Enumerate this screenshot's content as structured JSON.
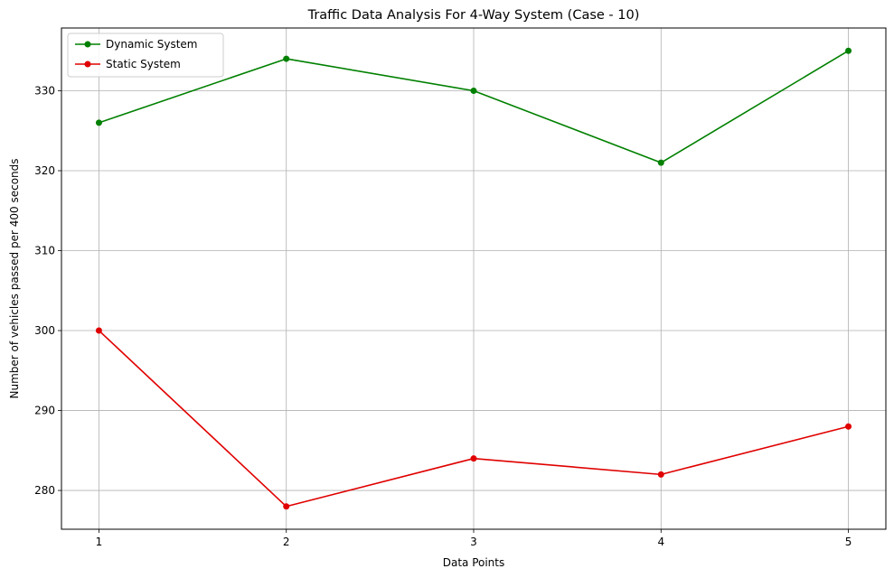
{
  "chart_data": {
    "type": "line",
    "title": "Traffic Data Analysis For 4-Way System (Case - 10)",
    "xlabel": "Data Points",
    "ylabel": "Number of vehicles passed per 400 seconds",
    "x": [
      1,
      2,
      3,
      4,
      5
    ],
    "x_ticks": [
      "1",
      "2",
      "3",
      "4",
      "5"
    ],
    "xlim": [
      0.8,
      5.2
    ],
    "y_ticks": [
      "280",
      "290",
      "300",
      "310",
      "320",
      "330"
    ],
    "y_tick_values": [
      280,
      290,
      300,
      310,
      320,
      330
    ],
    "ylim": [
      275.15,
      337.85
    ],
    "grid": true,
    "legend_position": "top-left",
    "series": [
      {
        "name": "Dynamic System",
        "values": [
          326,
          334,
          330,
          321,
          335
        ],
        "color": "#008000",
        "marker": "circle"
      },
      {
        "name": "Static System",
        "values": [
          300,
          278,
          284,
          282,
          288
        ],
        "color": "#e00000",
        "marker": "circle"
      }
    ]
  }
}
